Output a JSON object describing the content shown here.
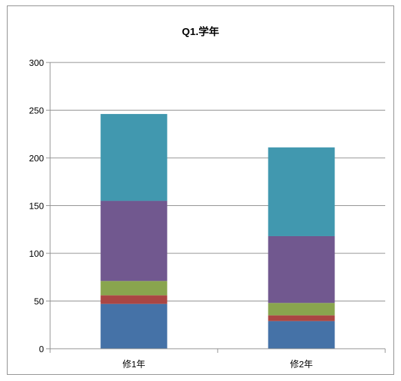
{
  "chart_data": {
    "type": "bar",
    "stacked": true,
    "title": "Q1.学年",
    "categories": [
      "修1年",
      "修2年"
    ],
    "series": [
      {
        "color": "#4572A7",
        "values": [
          47,
          29
        ]
      },
      {
        "color": "#AA4643",
        "values": [
          9,
          6
        ]
      },
      {
        "color": "#89A54E",
        "values": [
          15,
          13
        ]
      },
      {
        "color": "#71588F",
        "values": [
          84,
          70
        ]
      },
      {
        "color": "#4198AF",
        "values": [
          91,
          93
        ]
      }
    ],
    "ylim": [
      0,
      300
    ],
    "yticks": [
      0,
      50,
      100,
      150,
      200,
      250,
      300
    ],
    "grid": true,
    "legend": "none"
  }
}
